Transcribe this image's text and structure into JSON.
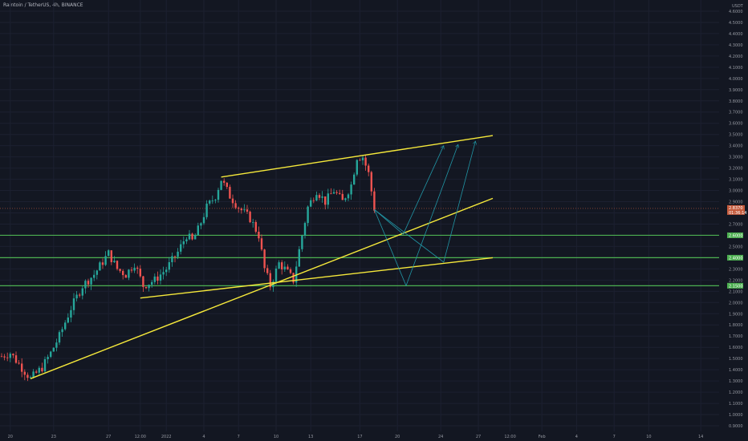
{
  "header": {
    "title": "Raintoin / TetherUS, 4h, BINANCE",
    "currency": "USDT"
  },
  "colors": {
    "background": "#131722",
    "up": "#26a69a",
    "down": "#ef5350",
    "trendline": "#f6e93b",
    "level": "#4caf50",
    "arrow": "#2196a6",
    "current_price": "#c45a3c"
  },
  "chart_data": {
    "type": "candlestick",
    "title": "Raintoin / TetherUS, 4h, BINANCE",
    "ylim": [
      0.85,
      4.7
    ],
    "y_ticks": [
      4.6,
      4.5,
      4.4,
      4.3,
      4.2,
      4.1,
      4.0,
      3.9,
      3.8,
      3.7,
      3.6,
      3.5,
      3.4,
      3.3,
      3.2,
      3.1,
      3.0,
      2.9,
      2.8,
      2.7,
      2.6,
      2.5,
      2.4,
      2.3,
      2.2,
      2.1,
      2.0,
      1.9,
      1.8,
      1.7,
      1.6,
      1.5,
      1.4,
      1.3,
      1.2,
      1.1,
      1.0,
      0.9
    ],
    "y_tick_labels": [
      "4.6000",
      "4.5000",
      "4.4000",
      "4.3000",
      "4.2000",
      "4.1000",
      "4.0000",
      "3.9000",
      "3.8000",
      "3.7000",
      "3.6000",
      "3.5000",
      "3.4000",
      "3.3000",
      "3.2000",
      "3.1000",
      "3.0000",
      "2.9000",
      "2.8000",
      "2.7000",
      "2.6000",
      "2.5000",
      "2.4000",
      "2.3000",
      "2.2000",
      "2.1000",
      "2.0000",
      "1.9000",
      "1.8000",
      "1.7000",
      "1.6000",
      "1.5000",
      "1.4000",
      "1.3000",
      "1.2000",
      "1.1000",
      "1.0000",
      "0.9000"
    ],
    "x_ticks": [
      {
        "label": "20",
        "bar": 3
      },
      {
        "label": "23",
        "bar": 18
      },
      {
        "label": "27",
        "bar": 37
      },
      {
        "label": "12:00",
        "bar": 48
      },
      {
        "label": "2022",
        "bar": 57
      },
      {
        "label": "4",
        "bar": 70
      },
      {
        "label": "7",
        "bar": 82
      },
      {
        "label": "10",
        "bar": 95
      },
      {
        "label": "13",
        "bar": 107
      },
      {
        "label": "17",
        "bar": 124
      },
      {
        "label": "20",
        "bar": 137
      },
      {
        "label": "24",
        "bar": 152
      },
      {
        "label": "27",
        "bar": 165
      },
      {
        "label": "12:00",
        "bar": 176
      },
      {
        "label": "Feb",
        "bar": 187
      },
      {
        "label": "4",
        "bar": 199
      },
      {
        "label": "7",
        "bar": 212
      },
      {
        "label": "10",
        "bar": 224
      },
      {
        "label": "14",
        "bar": 242
      }
    ],
    "horizontal_levels": [
      {
        "price": 2.6,
        "label": "2.6000"
      },
      {
        "price": 2.4,
        "label": "2.4000"
      },
      {
        "price": 2.15,
        "label": "2.1500"
      }
    ],
    "current_price": {
      "price": 2.84,
      "label": "2.8370",
      "sublabel": "01:36:14"
    },
    "trendlines": [
      {
        "from": [
          10,
          1.32
        ],
        "to": [
          170,
          2.93
        ]
      },
      {
        "from": [
          48,
          2.04
        ],
        "to": [
          170,
          2.4
        ]
      },
      {
        "from": [
          76,
          3.12
        ],
        "to": [
          170,
          3.49
        ]
      }
    ],
    "projection_arrows": [
      {
        "points": [
          [
            129,
            2.83
          ],
          [
            139,
            2.61
          ],
          [
            153,
            3.4
          ]
        ]
      },
      {
        "points": [
          [
            129,
            2.83
          ],
          [
            140,
            2.15
          ],
          [
            158,
            3.41
          ]
        ]
      },
      {
        "points": [
          [
            129,
            2.83
          ],
          [
            153,
            2.36
          ],
          [
            164,
            3.44
          ]
        ]
      }
    ],
    "candles": []
  }
}
